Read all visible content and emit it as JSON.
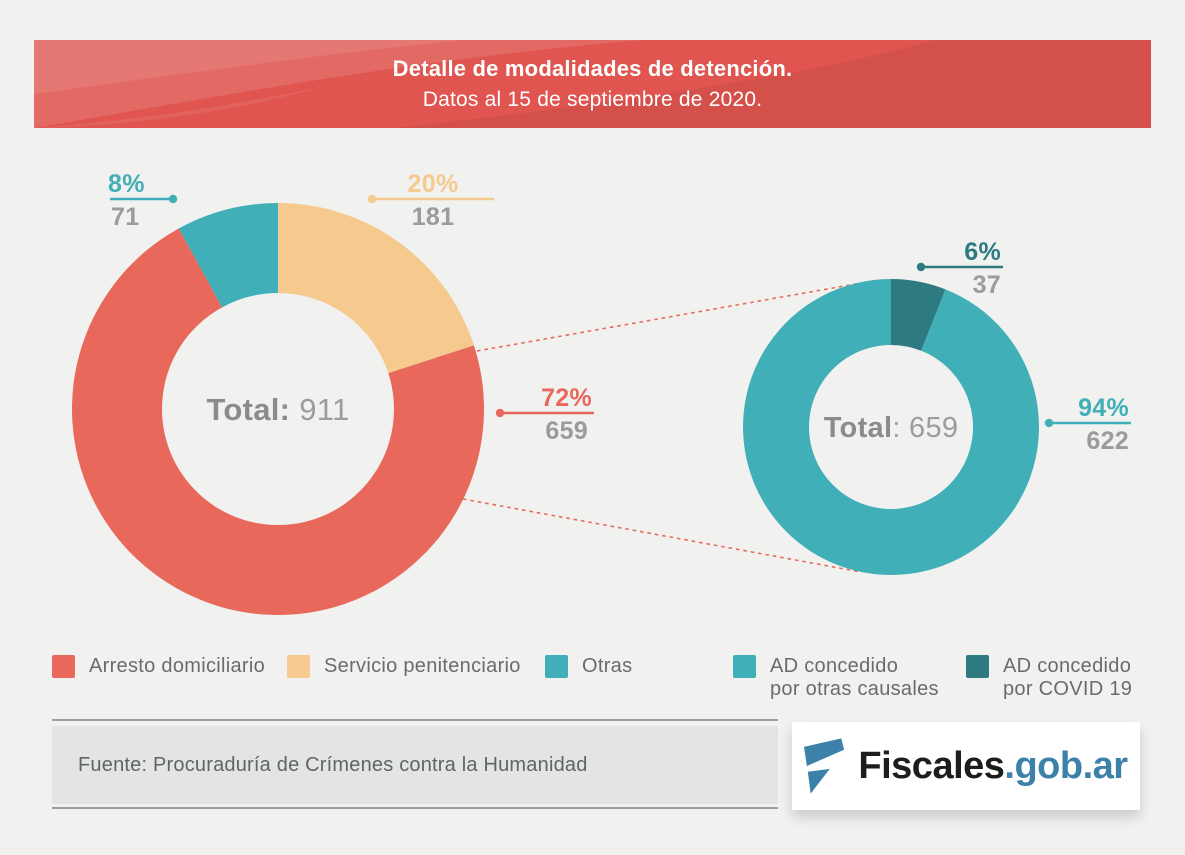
{
  "header": {
    "title": "Detalle de modalidades de detención.",
    "subtitle": "Datos al 15 de septiembre de 2020.",
    "bg_color": "#e0554f"
  },
  "colors": {
    "coral": "#e8695b",
    "peach": "#f6c98e",
    "teal": "#41afb8",
    "dark_teal": "#2e7a81",
    "value_gray": "#9b9b9b",
    "background": "#f1f1f0"
  },
  "chart_data": [
    {
      "type": "donut",
      "name": "modalidades-de-detencion",
      "total": 911,
      "center_label": "Total:",
      "center_value": " 911",
      "segments": [
        {
          "name": "Servicio penitenciario",
          "value": 181,
          "percent": 20,
          "percent_label": "20%",
          "value_label": "181",
          "color": "#f6c98e"
        },
        {
          "name": "Arresto domiciliario",
          "value": 659,
          "percent": 72,
          "percent_label": "72%",
          "value_label": "659",
          "color": "#e8695b"
        },
        {
          "name": "Otras",
          "value": 71,
          "percent": 8,
          "percent_label": "8%",
          "value_label": "71",
          "color": "#41afb8"
        }
      ]
    },
    {
      "type": "donut",
      "name": "detalle-arresto-domiciliario",
      "total": 659,
      "center_label": "Total",
      "center_value": ": 659",
      "segments": [
        {
          "name": "AD concedido por COVID 19",
          "value": 37,
          "percent": 6,
          "percent_label": "6%",
          "value_label": "37",
          "color": "#2e7a81"
        },
        {
          "name": "AD concedido por otras causales",
          "value": 622,
          "percent": 94,
          "percent_label": "94%",
          "value_label": "622",
          "color": "#41afb8"
        }
      ]
    }
  ],
  "legend": {
    "items": [
      {
        "label": "Arresto domiciliario",
        "color": "#e8695b"
      },
      {
        "label": "Servicio penitenciario",
        "color": "#f6c98e"
      },
      {
        "label": "Otras",
        "color": "#41afb8"
      },
      {
        "label": "AD concedido",
        "label2": "por otras causales",
        "color": "#41afb8"
      },
      {
        "label": "AD concedido",
        "label2": "por COVID 19",
        "color": "#2e7a81"
      }
    ]
  },
  "footer": {
    "source": "Fuente: Procuraduría de Crímenes contra la Humanidad",
    "logo_dark": "Fiscales",
    "logo_accent": ".gob.ar"
  }
}
